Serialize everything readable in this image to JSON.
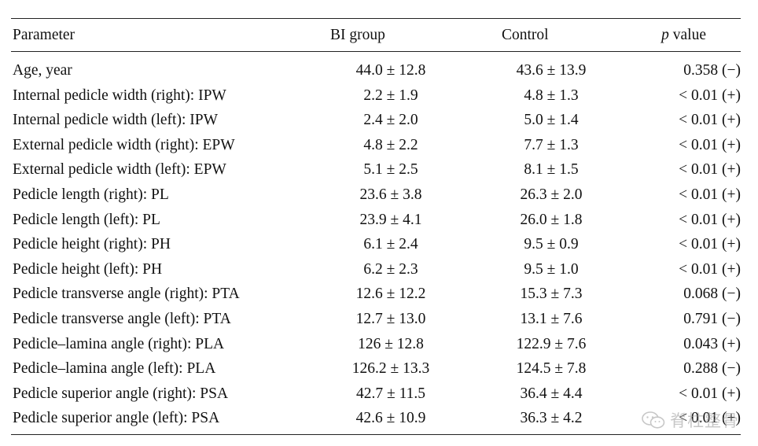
{
  "table": {
    "headers": {
      "parameter": "Parameter",
      "bi_group": "BI group",
      "control": "Control",
      "p_label_italic": "p",
      "p_label_rest": " value"
    },
    "rows": [
      {
        "parameter": "Age, year",
        "bi": "44.0 ± 12.8",
        "control": "43.6 ± 13.9",
        "p": "0.358 (−)"
      },
      {
        "parameter": "Internal pedicle width (right): IPW",
        "bi": "2.2 ± 1.9",
        "control": "4.8 ± 1.3",
        "p": "< 0.01 (+)"
      },
      {
        "parameter": "Internal pedicle width (left): IPW",
        "bi": "2.4 ± 2.0",
        "control": "5.0 ± 1.4",
        "p": "< 0.01 (+)"
      },
      {
        "parameter": "External pedicle width (right): EPW",
        "bi": "4.8 ± 2.2",
        "control": "7.7 ± 1.3",
        "p": "< 0.01 (+)"
      },
      {
        "parameter": "External pedicle width (left): EPW",
        "bi": "5.1 ± 2.5",
        "control": "8.1 ± 1.5",
        "p": "< 0.01 (+)"
      },
      {
        "parameter": "Pedicle length (right): PL",
        "bi": "23.6 ± 3.8",
        "control": "26.3 ± 2.0",
        "p": "< 0.01 (+)"
      },
      {
        "parameter": "Pedicle length (left): PL",
        "bi": "23.9 ± 4.1",
        "control": "26.0 ± 1.8",
        "p": "< 0.01 (+)"
      },
      {
        "parameter": "Pedicle height (right): PH",
        "bi": "6.1 ± 2.4",
        "control": "9.5 ± 0.9",
        "p": "< 0.01  (+)"
      },
      {
        "parameter": "Pedicle height (left): PH",
        "bi": "6.2 ± 2.3",
        "control": "9.5 ± 1.0",
        "p": "< 0.01 (+)"
      },
      {
        "parameter": "Pedicle transverse angle (right): PTA",
        "bi": "12.6 ± 12.2",
        "control": "15.3 ± 7.3",
        "p": "0.068 (−)"
      },
      {
        "parameter": "Pedicle transverse angle (left): PTA",
        "bi": "12.7 ± 13.0",
        "control": "13.1 ± 7.6",
        "p": "0.791 (−)"
      },
      {
        "parameter": "Pedicle–lamina angle (right): PLA",
        "bi": "126 ± 12.8",
        "control": "122.9 ± 7.6",
        "p": "0.043 (+)"
      },
      {
        "parameter": "Pedicle–lamina angle (left): PLA",
        "bi": "126.2 ± 13.3",
        "control": "124.5 ± 7.8",
        "p": "0.288 (−)"
      },
      {
        "parameter": "Pedicle superior angle (right): PSA",
        "bi": "42.7 ± 11.5",
        "control": "36.4 ± 4.4",
        "p": "< 0.01 (+)"
      },
      {
        "parameter": "Pedicle superior angle (left): PSA",
        "bi": "42.6 ± 10.9",
        "control": "36.3 ± 4.2",
        "p": "< 0.01 (+)"
      }
    ]
  },
  "watermark": {
    "text": "脊柱整骨",
    "icon": "wechat-icon"
  }
}
